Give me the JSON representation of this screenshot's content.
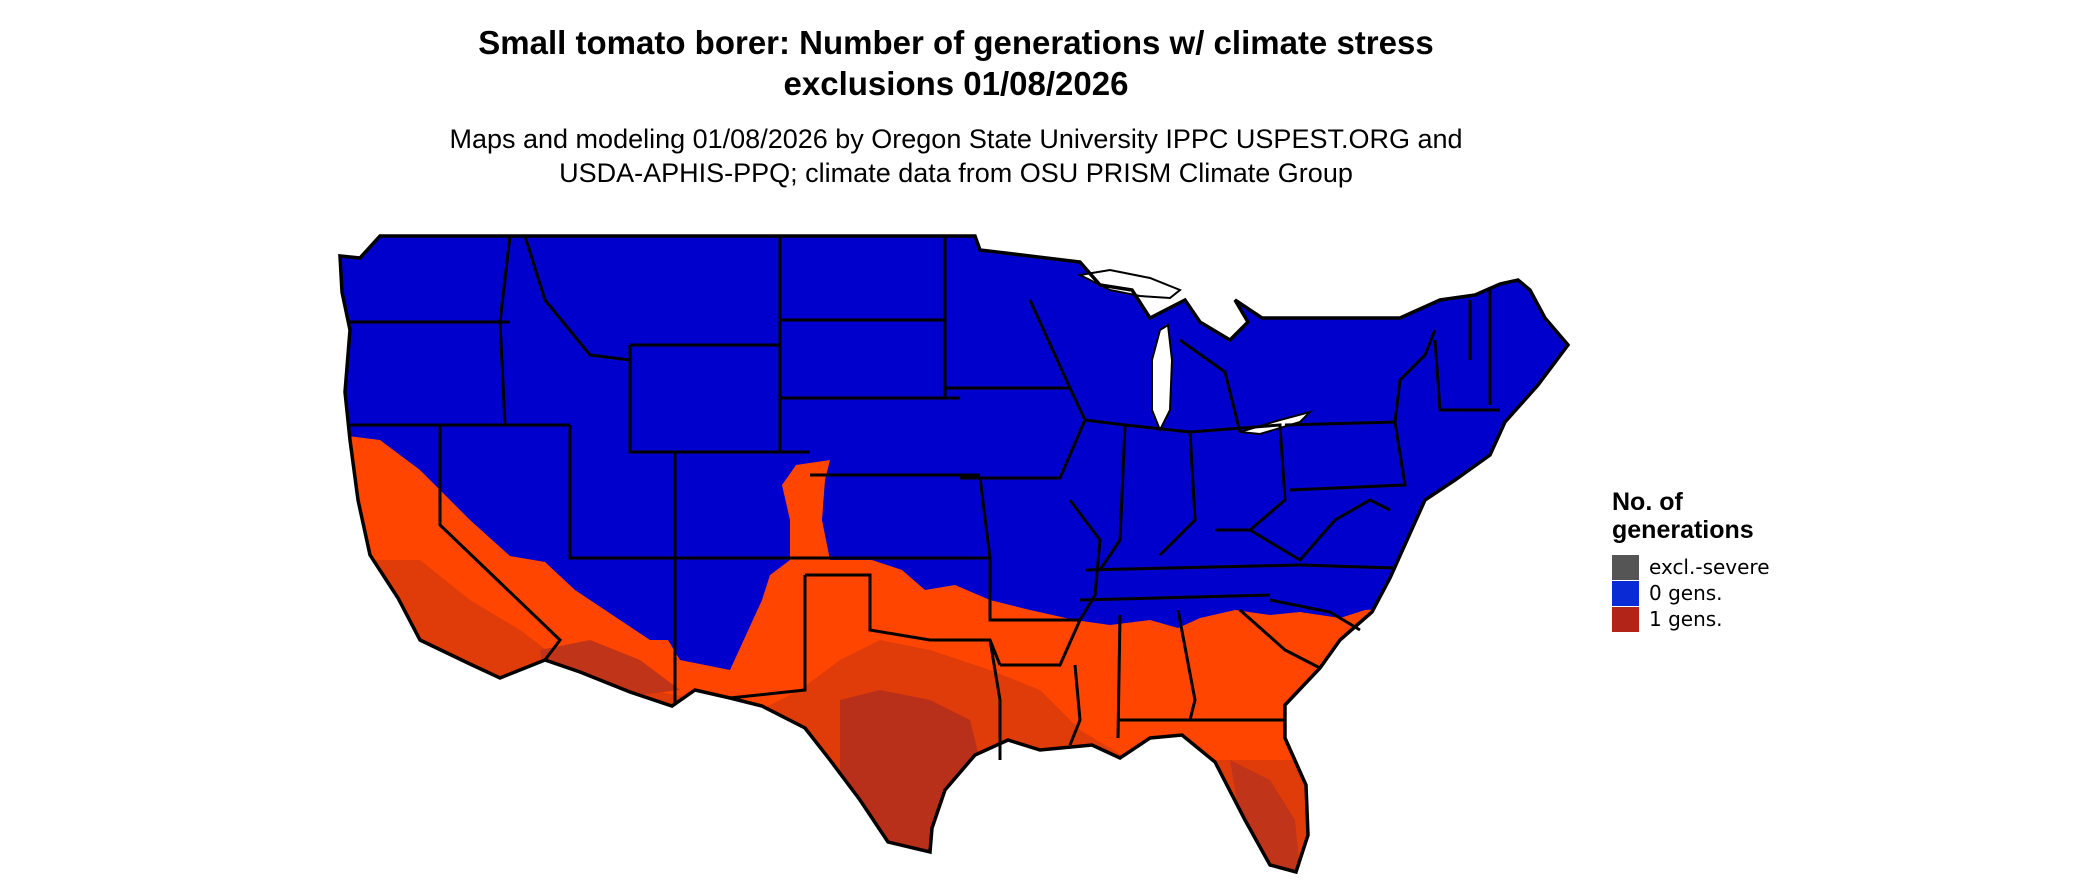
{
  "map": {
    "title_line1": "Small tomato borer: Number of generations w/ climate stress",
    "title_line2": "exclusions 01/08/2026",
    "subtitle_line1": "Maps and modeling 01/08/2026 by Oregon State University IPPC USPEST.ORG and",
    "subtitle_line2": "USDA-APHIS-PPQ; climate data from OSU PRISM Climate Group",
    "region": "Contiguous United States",
    "colors": {
      "zero_gens": "#0000cc",
      "one_gen_light": "#ff4500",
      "one_gen_mid": "#e03c0a",
      "one_gen_dark": "#b8301a",
      "state_borders": "#000000"
    }
  },
  "legend": {
    "title_line1": "No. of",
    "title_line2": "generations",
    "items": [
      {
        "label": "excl.-severe",
        "color": "#555555"
      },
      {
        "label": "0 gens.",
        "color": "#0a2ad6"
      },
      {
        "label": "1 gens.",
        "color": "#b22318"
      }
    ]
  }
}
